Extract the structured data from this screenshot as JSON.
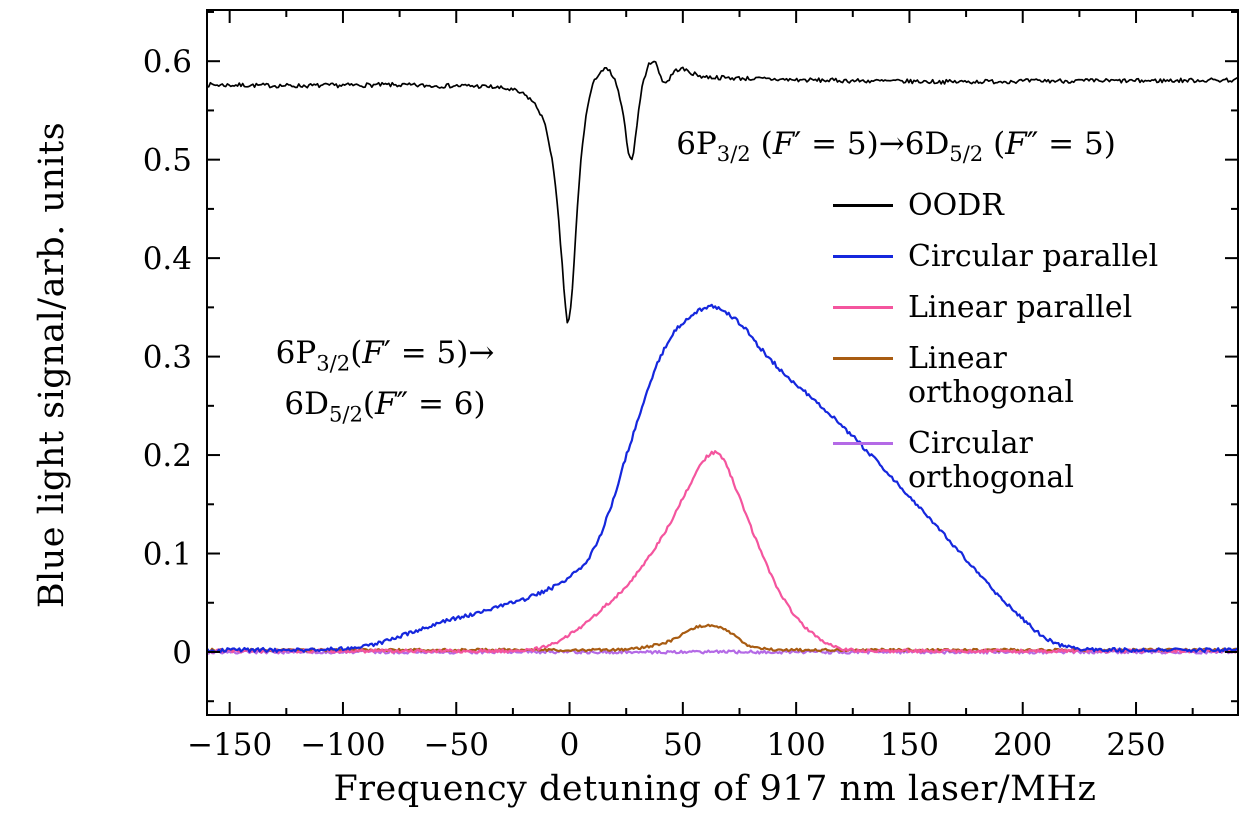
{
  "figure": {
    "background": "#ffffff",
    "frame_color": "#000000"
  },
  "chart_data": {
    "type": "line",
    "title": "",
    "xlabel": "Frequency detuning of 917 nm laser/MHz",
    "ylabel": "Blue light signal/arb. units",
    "xlim": [
      -160,
      295
    ],
    "ylim": [
      -0.064,
      0.652
    ],
    "grid": false,
    "legend_position": "inside-right",
    "x_ticks": {
      "values": [
        -150,
        -100,
        -50,
        0,
        50,
        100,
        150,
        200,
        250
      ],
      "labels": [
        "−150",
        "−100",
        "−50",
        "0",
        "50",
        "100",
        "150",
        "200",
        "250"
      ],
      "minor_step": 25
    },
    "y_ticks": {
      "values": [
        0,
        0.1,
        0.2,
        0.3,
        0.4,
        0.5,
        0.6
      ],
      "labels": [
        "0",
        "0.1",
        "0.2",
        "0.3",
        "0.4",
        "0.5",
        "0.6"
      ],
      "minor_step": 0.05
    },
    "annotations": {
      "top": {
        "segments": [
          {
            "t": "6P"
          },
          {
            "t": "3/2",
            "sub": true
          },
          {
            "t": " ("
          },
          {
            "t": "F",
            "it": true
          },
          {
            "t": "′ = 5)→6D"
          },
          {
            "t": "5/2",
            "sub": true
          },
          {
            "t": " ("
          },
          {
            "t": "F",
            "it": true
          },
          {
            "t": "″ = 5)"
          }
        ]
      },
      "left": {
        "lines": [
          [
            {
              "t": "6P"
            },
            {
              "t": "3/2",
              "sub": true
            },
            {
              "t": "("
            },
            {
              "t": "F",
              "it": true
            },
            {
              "t": "′ = 5)→"
            }
          ],
          [
            {
              "t": "6D"
            },
            {
              "t": "5/2",
              "sub": true
            },
            {
              "t": "("
            },
            {
              "t": "F",
              "it": true
            },
            {
              "t": "″ = 6)"
            }
          ]
        ]
      }
    },
    "series": [
      {
        "id": "oodr",
        "label": "OODR",
        "color": "#000000",
        "line_width": 1.7,
        "noise": 0.0022,
        "points": [
          [
            -160,
            0.576
          ],
          [
            -120,
            0.575
          ],
          [
            -80,
            0.576
          ],
          [
            -60,
            0.575
          ],
          [
            -45,
            0.575
          ],
          [
            -35,
            0.574
          ],
          [
            -28,
            0.572
          ],
          [
            -24,
            0.57
          ],
          [
            -20,
            0.566
          ],
          [
            -17,
            0.561
          ],
          [
            -14,
            0.552
          ],
          [
            -12,
            0.543
          ],
          [
            -10,
            0.528
          ],
          [
            -8,
            0.505
          ],
          [
            -6,
            0.468
          ],
          [
            -5,
            0.443
          ],
          [
            -4,
            0.415
          ],
          [
            -3,
            0.385
          ],
          [
            -2,
            0.355
          ],
          [
            -1,
            0.335
          ],
          [
            0,
            0.338
          ],
          [
            1,
            0.36
          ],
          [
            2,
            0.395
          ],
          [
            3,
            0.435
          ],
          [
            4,
            0.47
          ],
          [
            5,
            0.498
          ],
          [
            6,
            0.522
          ],
          [
            7,
            0.54
          ],
          [
            8,
            0.554
          ],
          [
            9,
            0.565
          ],
          [
            10,
            0.574
          ],
          [
            12,
            0.585
          ],
          [
            14,
            0.59
          ],
          [
            16,
            0.592
          ],
          [
            18,
            0.589
          ],
          [
            20,
            0.58
          ],
          [
            22,
            0.565
          ],
          [
            24,
            0.54
          ],
          [
            25,
            0.524
          ],
          [
            26,
            0.508
          ],
          [
            27,
            0.499
          ],
          [
            28,
            0.505
          ],
          [
            29,
            0.52
          ],
          [
            30,
            0.541
          ],
          [
            31,
            0.559
          ],
          [
            32,
            0.573
          ],
          [
            33,
            0.583
          ],
          [
            34,
            0.591
          ],
          [
            35,
            0.596
          ],
          [
            36,
            0.6
          ],
          [
            37,
            0.601
          ],
          [
            38,
            0.598
          ],
          [
            39,
            0.592
          ],
          [
            40,
            0.586
          ],
          [
            41,
            0.581
          ],
          [
            42,
            0.578
          ],
          [
            43,
            0.579
          ],
          [
            44,
            0.582
          ],
          [
            45,
            0.586
          ],
          [
            46,
            0.589
          ],
          [
            48,
            0.592
          ],
          [
            50,
            0.592
          ],
          [
            53,
            0.589
          ],
          [
            56,
            0.586
          ],
          [
            60,
            0.584
          ],
          [
            70,
            0.583
          ],
          [
            85,
            0.582
          ],
          [
            100,
            0.581
          ],
          [
            130,
            0.58
          ],
          [
            170,
            0.579
          ],
          [
            210,
            0.58
          ],
          [
            250,
            0.58
          ],
          [
            295,
            0.581
          ]
        ]
      },
      {
        "id": "circular-parallel",
        "label": "Circular parallel",
        "color": "#1527dd",
        "line_width": 2.2,
        "noise": 0.002,
        "points": [
          [
            -160,
            0.002
          ],
          [
            -115,
            0.002
          ],
          [
            -105,
            0.003
          ],
          [
            -98,
            0.004
          ],
          [
            -92,
            0.005
          ],
          [
            -87,
            0.007
          ],
          [
            -82,
            0.01
          ],
          [
            -77,
            0.014
          ],
          [
            -72,
            0.018
          ],
          [
            -67,
            0.022
          ],
          [
            -62,
            0.026
          ],
          [
            -57,
            0.03
          ],
          [
            -52,
            0.033
          ],
          [
            -47,
            0.036
          ],
          [
            -42,
            0.039
          ],
          [
            -37,
            0.042
          ],
          [
            -32,
            0.045
          ],
          [
            -27,
            0.049
          ],
          [
            -22,
            0.052
          ],
          [
            -17,
            0.056
          ],
          [
            -12,
            0.061
          ],
          [
            -7,
            0.066
          ],
          [
            -2,
            0.073
          ],
          [
            3,
            0.081
          ],
          [
            6,
            0.088
          ],
          [
            9,
            0.097
          ],
          [
            12,
            0.11
          ],
          [
            15,
            0.127
          ],
          [
            18,
            0.146
          ],
          [
            21,
            0.168
          ],
          [
            24,
            0.192
          ],
          [
            27,
            0.213
          ],
          [
            30,
            0.235
          ],
          [
            33,
            0.256
          ],
          [
            36,
            0.276
          ],
          [
            39,
            0.294
          ],
          [
            42,
            0.309
          ],
          [
            45,
            0.321
          ],
          [
            48,
            0.33
          ],
          [
            51,
            0.337
          ],
          [
            54,
            0.342
          ],
          [
            57,
            0.347
          ],
          [
            60,
            0.35
          ],
          [
            63,
            0.351
          ],
          [
            66,
            0.349
          ],
          [
            69,
            0.345
          ],
          [
            72,
            0.34
          ],
          [
            75,
            0.334
          ],
          [
            78,
            0.327
          ],
          [
            81,
            0.318
          ],
          [
            84,
            0.309
          ],
          [
            88,
            0.299
          ],
          [
            92,
            0.289
          ],
          [
            96,
            0.28
          ],
          [
            100,
            0.272
          ],
          [
            105,
            0.262
          ],
          [
            110,
            0.252
          ],
          [
            115,
            0.241
          ],
          [
            120,
            0.23
          ],
          [
            125,
            0.219
          ],
          [
            130,
            0.207
          ],
          [
            135,
            0.195
          ],
          [
            140,
            0.183
          ],
          [
            145,
            0.171
          ],
          [
            150,
            0.158
          ],
          [
            155,
            0.146
          ],
          [
            160,
            0.133
          ],
          [
            165,
            0.12
          ],
          [
            170,
            0.107
          ],
          [
            175,
            0.094
          ],
          [
            180,
            0.081
          ],
          [
            185,
            0.068
          ],
          [
            190,
            0.056
          ],
          [
            195,
            0.044
          ],
          [
            200,
            0.033
          ],
          [
            205,
            0.023
          ],
          [
            210,
            0.014
          ],
          [
            214,
            0.009
          ],
          [
            218,
            0.006
          ],
          [
            222,
            0.004
          ],
          [
            226,
            0.003
          ],
          [
            232,
            0.002
          ],
          [
            295,
            0.002
          ]
        ]
      },
      {
        "id": "linear-parallel",
        "label": "Linear parallel",
        "color": "#f4559e",
        "line_width": 2.2,
        "noise": 0.0016,
        "points": [
          [
            -160,
            0.001
          ],
          [
            -22,
            0.001
          ],
          [
            -17,
            0.002
          ],
          [
            -13,
            0.004
          ],
          [
            -9,
            0.007
          ],
          [
            -5,
            0.011
          ],
          [
            -1,
            0.016
          ],
          [
            3,
            0.022
          ],
          [
            7,
            0.029
          ],
          [
            11,
            0.037
          ],
          [
            15,
            0.045
          ],
          [
            19,
            0.053
          ],
          [
            23,
            0.062
          ],
          [
            27,
            0.072
          ],
          [
            31,
            0.083
          ],
          [
            35,
            0.096
          ],
          [
            39,
            0.11
          ],
          [
            43,
            0.125
          ],
          [
            47,
            0.142
          ],
          [
            50,
            0.156
          ],
          [
            53,
            0.17
          ],
          [
            56,
            0.183
          ],
          [
            58,
            0.191
          ],
          [
            60,
            0.197
          ],
          [
            62,
            0.201
          ],
          [
            64,
            0.203
          ],
          [
            66,
            0.201
          ],
          [
            68,
            0.195
          ],
          [
            70,
            0.186
          ],
          [
            72,
            0.174
          ],
          [
            75,
            0.157
          ],
          [
            78,
            0.139
          ],
          [
            81,
            0.121
          ],
          [
            84,
            0.104
          ],
          [
            87,
            0.088
          ],
          [
            90,
            0.073
          ],
          [
            93,
            0.06
          ],
          [
            96,
            0.048
          ],
          [
            99,
            0.038
          ],
          [
            102,
            0.03
          ],
          [
            105,
            0.023
          ],
          [
            108,
            0.017
          ],
          [
            111,
            0.012
          ],
          [
            114,
            0.008
          ],
          [
            117,
            0.005
          ],
          [
            120,
            0.003
          ],
          [
            124,
            0.002
          ],
          [
            130,
            0.001
          ],
          [
            295,
            0.001
          ]
        ]
      },
      {
        "id": "linear-orthogonal",
        "label": "Linear\northogonal",
        "color": "#a85c12",
        "line_width": 2.2,
        "noise": 0.0013,
        "points": [
          [
            -160,
            0.002
          ],
          [
            20,
            0.002
          ],
          [
            26,
            0.003
          ],
          [
            31,
            0.004
          ],
          [
            36,
            0.006
          ],
          [
            40,
            0.008
          ],
          [
            44,
            0.011
          ],
          [
            47,
            0.014
          ],
          [
            50,
            0.018
          ],
          [
            53,
            0.022
          ],
          [
            56,
            0.025
          ],
          [
            59,
            0.027
          ],
          [
            62,
            0.027
          ],
          [
            65,
            0.026
          ],
          [
            68,
            0.024
          ],
          [
            71,
            0.02
          ],
          [
            74,
            0.014
          ],
          [
            77,
            0.009
          ],
          [
            80,
            0.006
          ],
          [
            84,
            0.004
          ],
          [
            88,
            0.003
          ],
          [
            93,
            0.002
          ],
          [
            295,
            0.002
          ]
        ]
      },
      {
        "id": "circular-orthogonal",
        "label": "Circular\northogonal",
        "color": "#b46ae6",
        "line_width": 2.2,
        "noise": 0.0016,
        "points": [
          [
            -160,
            0.0
          ],
          [
            295,
            0.0
          ]
        ]
      }
    ]
  }
}
